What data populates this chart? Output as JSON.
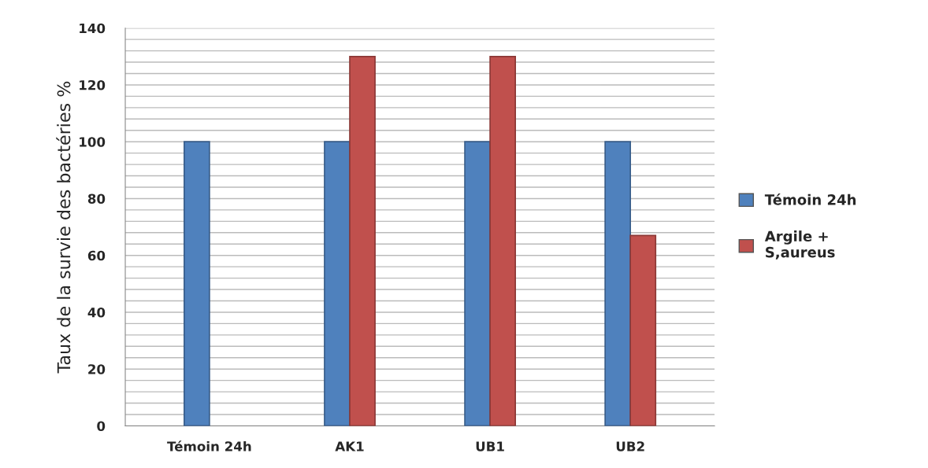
{
  "chart_data": {
    "type": "bar",
    "ylabel": "Taux de la survie des bactéries %",
    "categories": [
      "Témoin 24h",
      "AK1",
      "UB1",
      "UB2"
    ],
    "series": [
      {
        "name": "Témoin 24h",
        "color": "#4f81bd",
        "values": [
          100,
          100,
          100,
          100
        ]
      },
      {
        "name": "Argile + S,aureus",
        "color": "#c0504d",
        "values": [
          null,
          130,
          130,
          67
        ]
      }
    ],
    "ylim": [
      0,
      140
    ],
    "yticks": [
      0,
      {
        "value": 4,
        "label": null
      },
      {
        "value": 8,
        "label": null
      },
      {
        "value": 12,
        "label": null
      },
      {
        "value": 16,
        "label": null
      },
      20,
      {
        "value": 24,
        "label": null
      },
      {
        "value": 28,
        "label": null
      },
      {
        "value": 32,
        "label": null
      },
      {
        "value": 36,
        "label": null
      },
      40,
      {
        "value": 44,
        "label": null
      },
      {
        "value": 48,
        "label": null
      },
      {
        "value": 52,
        "label": null
      },
      {
        "value": 56,
        "label": null
      },
      60,
      {
        "value": 64,
        "label": null
      },
      {
        "value": 68,
        "label": null
      },
      {
        "value": 72,
        "label": null
      },
      {
        "value": 76,
        "label": null
      },
      80,
      {
        "value": 84,
        "label": null
      },
      {
        "value": 88,
        "label": null
      },
      {
        "value": 92,
        "label": null
      },
      {
        "value": 96,
        "label": null
      },
      100,
      {
        "value": 104,
        "label": null
      },
      {
        "value": 108,
        "label": null
      },
      {
        "value": 112,
        "label": null
      },
      {
        "value": 116,
        "label": null
      },
      120,
      {
        "value": 124,
        "label": null
      },
      {
        "value": 128,
        "label": null
      },
      {
        "value": 132,
        "label": null
      },
      {
        "value": 136,
        "label": null
      },
      140
    ],
    "grid": "y",
    "legend": "right"
  }
}
